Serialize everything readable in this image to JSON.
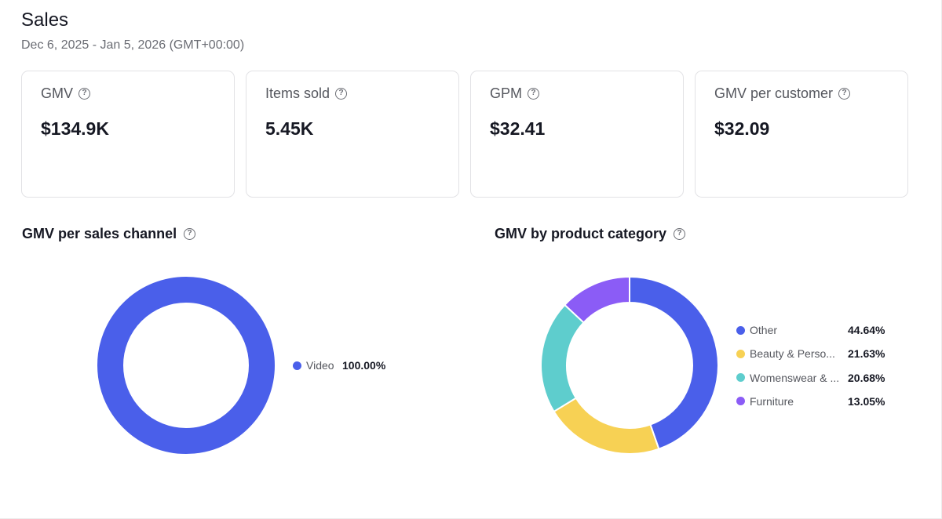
{
  "header": {
    "title": "Sales",
    "date_range": "Dec 6, 2025 - Jan 5, 2026 (GMT+00:00)"
  },
  "kpis": [
    {
      "label": "GMV",
      "value": "$134.9K"
    },
    {
      "label": "Items sold",
      "value": "5.45K"
    },
    {
      "label": "GPM",
      "value": "$32.41"
    },
    {
      "label": "GMV per customer",
      "value": "$32.09"
    }
  ],
  "help_icon": "question-circle-icon",
  "chart_data": [
    {
      "type": "pie",
      "title": "GMV per sales channel",
      "donut": true,
      "legend_position": "right",
      "slices": [
        {
          "name": "Video",
          "value": 100.0,
          "label": "100.00%",
          "color": "#4A5FEA"
        }
      ]
    },
    {
      "type": "pie",
      "title": "GMV by product category",
      "donut": true,
      "legend_position": "right",
      "slices": [
        {
          "name": "Other",
          "value": 44.64,
          "label": "44.64%",
          "color": "#4A5FEA"
        },
        {
          "name": "Beauty & Perso...",
          "value": 21.63,
          "label": "21.63%",
          "color": "#F7D154"
        },
        {
          "name": "Womenswear & ...",
          "value": 20.68,
          "label": "20.68%",
          "color": "#5ECDCD"
        },
        {
          "name": "Furniture",
          "value": 13.05,
          "label": "13.05%",
          "color": "#8B5CF6"
        }
      ]
    }
  ]
}
